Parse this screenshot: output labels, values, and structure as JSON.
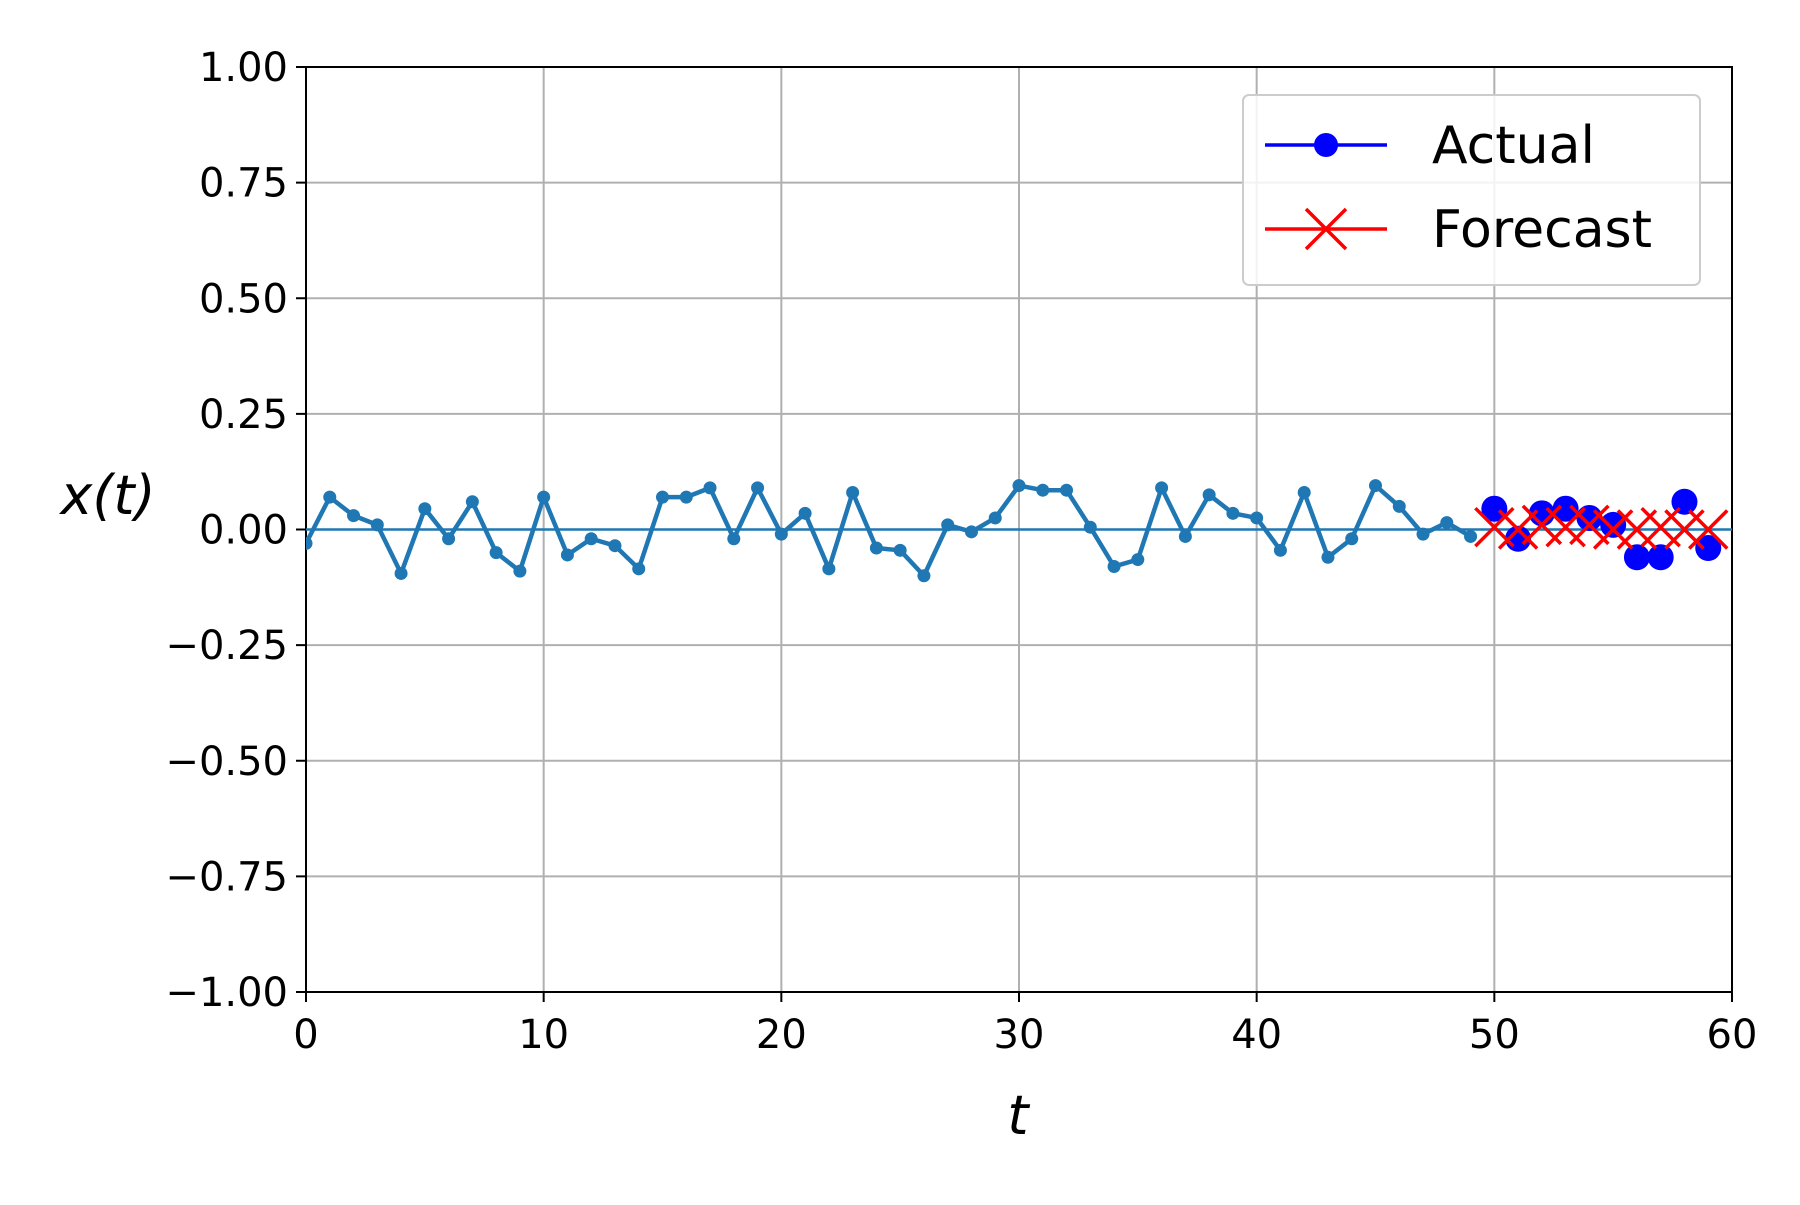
{
  "chart_data": {
    "type": "line",
    "xlabel": "t",
    "ylabel": "x(t)",
    "xlim": [
      0,
      60
    ],
    "ylim": [
      -1.0,
      1.0
    ],
    "xticks": [
      0,
      10,
      20,
      30,
      40,
      50,
      60
    ],
    "xtick_labels": [
      "0",
      "10",
      "20",
      "30",
      "40",
      "50",
      "60"
    ],
    "yticks": [
      -1.0,
      -0.75,
      -0.5,
      -0.25,
      0.0,
      0.25,
      0.5,
      0.75,
      1.0
    ],
    "ytick_labels": [
      "−1.00",
      "−0.75",
      "−0.50",
      "−0.25",
      "0.00",
      "0.25",
      "0.50",
      "0.75",
      "1.00"
    ],
    "grid": true,
    "legend_position": "top-right",
    "reference_line": {
      "y": 0.0,
      "color": "#1f77b4"
    },
    "series": [
      {
        "key": "history",
        "color": "#1f77b4",
        "marker": "dot",
        "x": [
          0,
          1,
          2,
          3,
          4,
          5,
          6,
          7,
          8,
          9,
          10,
          11,
          12,
          13,
          14,
          15,
          16,
          17,
          18,
          19,
          20,
          21,
          22,
          23,
          24,
          25,
          26,
          27,
          28,
          29,
          30,
          31,
          32,
          33,
          34,
          35,
          36,
          37,
          38,
          39,
          40,
          41,
          42,
          43,
          44,
          45,
          46,
          47,
          48,
          49
        ],
        "y": [
          -0.03,
          0.07,
          0.03,
          0.01,
          -0.095,
          0.045,
          -0.02,
          0.06,
          -0.05,
          -0.09,
          0.07,
          -0.055,
          -0.02,
          -0.035,
          -0.085,
          0.07,
          0.07,
          0.09,
          -0.02,
          0.09,
          -0.01,
          0.035,
          -0.085,
          0.08,
          -0.04,
          -0.045,
          -0.1,
          0.01,
          -0.005,
          0.025,
          0.095,
          0.085,
          0.085,
          0.005,
          -0.08,
          -0.065,
          0.09,
          -0.015,
          0.075,
          0.035,
          0.025,
          -0.045,
          0.08,
          -0.06,
          -0.02,
          0.095,
          0.05,
          -0.01,
          0.015,
          -0.015
        ]
      },
      {
        "key": "actual",
        "name": "Actual",
        "color": "#0000ff",
        "marker": "circle",
        "x": [
          50,
          51,
          52,
          53,
          54,
          55,
          56,
          57,
          58,
          59
        ],
        "y": [
          0.045,
          -0.02,
          0.035,
          0.045,
          0.025,
          0.01,
          -0.06,
          -0.06,
          0.06,
          -0.04
        ]
      },
      {
        "key": "forecast",
        "name": "Forecast",
        "color": "#ff0000",
        "marker": "x",
        "x": [
          50,
          51,
          52,
          53,
          54,
          55,
          56,
          57,
          58,
          59
        ],
        "y": [
          0.005,
          0.0,
          0.01,
          0.005,
          0.01,
          0.0,
          0.0,
          0.005,
          0.0,
          0.0
        ]
      }
    ],
    "legend": [
      {
        "label": "Actual",
        "color": "#0000ff",
        "marker": "circle"
      },
      {
        "label": "Forecast",
        "color": "#ff0000",
        "marker": "x"
      }
    ]
  }
}
